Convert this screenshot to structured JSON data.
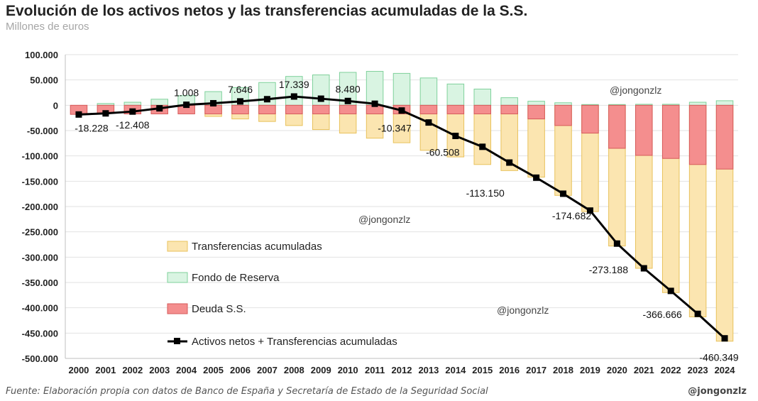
{
  "title": "Evolución de los activos netos y las transferencias acumuladas de la S.S.",
  "subtitle": "Millones de euros",
  "source": "Fuente: Elaboración propia con datos de Banco de España y Secretaría de Estado de la Seguridad Social",
  "credit": "@jongonzlz",
  "watermarks": [
    "@jongonzlz",
    "@jongonzlz",
    "@jongonzlz"
  ],
  "colors": {
    "transferencias_fill": "#fbe5b0",
    "transferencias_edge": "#e8c25c",
    "fondo_fill": "#d9f4e2",
    "fondo_edge": "#7fd19b",
    "deuda_fill": "#f48e8e",
    "deuda_edge": "#d65a5a",
    "line": "#000000"
  },
  "chart_data": {
    "type": "bar",
    "categories": [
      "2000",
      "2001",
      "2002",
      "2003",
      "2004",
      "2005",
      "2006",
      "2007",
      "2008",
      "2009",
      "2010",
      "2011",
      "2012",
      "2013",
      "2014",
      "2015",
      "2016",
      "2017",
      "2018",
      "2019",
      "2020",
      "2021",
      "2022",
      "2023",
      "2024"
    ],
    "ylim": [
      -500000,
      100000
    ],
    "yticks": [
      100000,
      50000,
      0,
      -50000,
      -100000,
      -150000,
      -200000,
      -250000,
      -300000,
      -350000,
      -400000,
      -450000,
      -500000
    ],
    "ytick_labels": [
      "100.000",
      "50.000",
      "0",
      "-50.000",
      "-100.000",
      "-150.000",
      "-200.000",
      "-250.000",
      "-300.000",
      "-350.000",
      "-400.000",
      "-450.000",
      "-500.000"
    ],
    "grid": "horizontal",
    "legend_position": "lower-left inside plot",
    "series": [
      {
        "name": "Transferencias acumuladas",
        "kind": "bar",
        "values": [
          0,
          0,
          0,
          -2000,
          -3000,
          -22000,
          -27000,
          -32000,
          -40000,
          -48000,
          -55000,
          -65000,
          -74000,
          -89000,
          -102000,
          -117000,
          -129000,
          -142000,
          -178000,
          -210000,
          -278000,
          -322000,
          -370000,
          -418000,
          -466000
        ]
      },
      {
        "name": "Fondo de Reserva",
        "kind": "bar",
        "values": [
          0,
          3500,
          6000,
          12000,
          19000,
          27000,
          35000,
          45000,
          57000,
          60000,
          65000,
          67000,
          63000,
          54000,
          42000,
          32000,
          15000,
          8000,
          5000,
          1500,
          1500,
          2000,
          2000,
          6000,
          9000
        ]
      },
      {
        "name": "Deuda S.S.",
        "kind": "bar",
        "values": [
          -18000,
          -16000,
          -17000,
          -17000,
          -17000,
          -17000,
          -17000,
          -17000,
          -17000,
          -17000,
          -17000,
          -17000,
          -17000,
          -17000,
          -17000,
          -17000,
          -17000,
          -27000,
          -40000,
          -55000,
          -85000,
          -99000,
          -105000,
          -117000,
          -126000
        ]
      },
      {
        "name": "Activos netos + Transferencias acumuladas",
        "kind": "line",
        "values": [
          -18228,
          -16000,
          -12408,
          -6000,
          1008,
          4000,
          7646,
          12000,
          17339,
          13000,
          8480,
          3000,
          -10347,
          -34000,
          -60508,
          -82000,
          -113150,
          -143000,
          -174682,
          -208000,
          -273188,
          -322000,
          -366666,
          -412000,
          -460349
        ]
      }
    ],
    "data_labels": [
      {
        "index": 0,
        "text": "-18.228"
      },
      {
        "index": 2,
        "text": "-12.408"
      },
      {
        "index": 4,
        "text": "1.008"
      },
      {
        "index": 6,
        "text": "7.646"
      },
      {
        "index": 8,
        "text": "17.339"
      },
      {
        "index": 10,
        "text": "8.480"
      },
      {
        "index": 12,
        "text": "-10.347"
      },
      {
        "index": 14,
        "text": "-60.508"
      },
      {
        "index": 16,
        "text": "-113.150"
      },
      {
        "index": 18,
        "text": "-174.682"
      },
      {
        "index": 20,
        "text": "-273.188"
      },
      {
        "index": 22,
        "text": "-366.666"
      },
      {
        "index": 24,
        "text": "-460.349"
      }
    ]
  }
}
